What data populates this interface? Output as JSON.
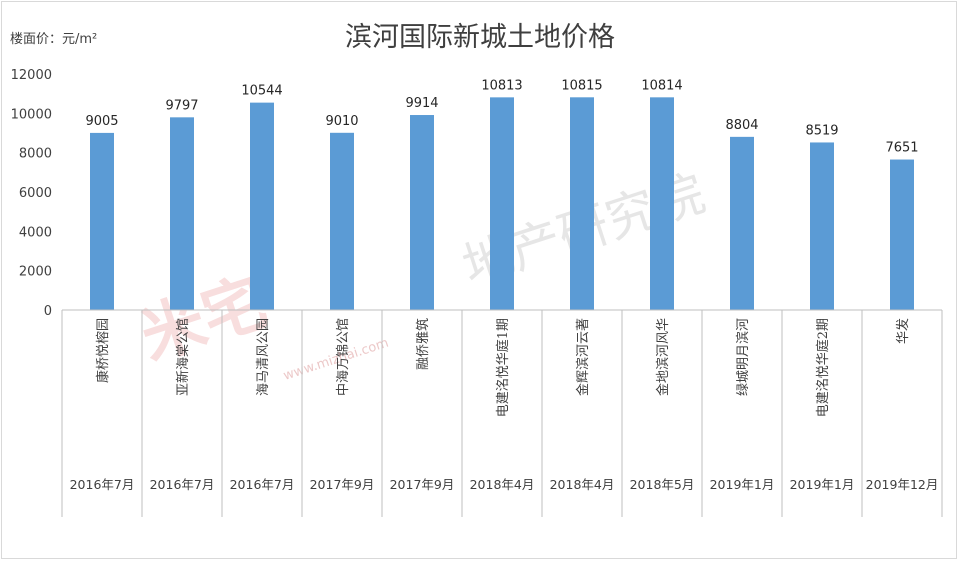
{
  "chart_data": {
    "type": "bar",
    "title": "滨河国际新城土地价格",
    "ylabel": "楼面价：元/m²",
    "ylim": [
      0,
      12000
    ],
    "yticks": [
      0,
      2000,
      4000,
      6000,
      8000,
      10000,
      12000
    ],
    "grid": false,
    "legend": "none",
    "categories": [
      "康桥悦榕园",
      "亚新海棠公馆",
      "海马清风公园",
      "中海万锦公馆",
      "融侨雅筑",
      "电建洺悦华庭1期",
      "金辉滨河云著",
      "金地滨河风华",
      "绿城明月滨河",
      "电建洺悦华庭2期",
      "华发"
    ],
    "dates": [
      "2016年7月",
      "2016年7月",
      "2016年7月",
      "2017年9月",
      "2017年9月",
      "2018年4月",
      "2018年4月",
      "2018年5月",
      "2019年1月",
      "2019年1月",
      "2019年12月"
    ],
    "values": [
      9005,
      9797,
      10544,
      9010,
      9914,
      10813,
      10815,
      10814,
      8804,
      8519,
      7651
    ],
    "bar_color": "#5b9bd5",
    "watermark": "米宅 地产研究院",
    "watermark_url": "www.mizhai.com"
  }
}
